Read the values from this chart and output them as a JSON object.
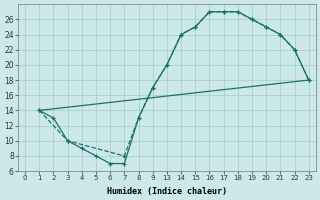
{
  "xlabel": "Humidex (Indice chaleur)",
  "ylabel": "",
  "bg_color": "#cce8e8",
  "grid_color": "#aacece",
  "line_color": "#1a7070",
  "xlim": [
    -0.5,
    23.5
  ],
  "ylim": [
    6,
    28
  ],
  "yticks": [
    6,
    8,
    10,
    12,
    14,
    16,
    18,
    20,
    22,
    24,
    26
  ],
  "xtick_positions": [
    0,
    1,
    2,
    3,
    4,
    5,
    6,
    7,
    8,
    9,
    13,
    14,
    15,
    16,
    17,
    18,
    19,
    20,
    21,
    22,
    23
  ],
  "xtick_labels": [
    "0",
    "1",
    "2",
    "3",
    "4",
    "5",
    "6",
    "7",
    "8",
    "9",
    "13",
    "14",
    "15",
    "16",
    "17",
    "18",
    "19",
    "20",
    "21",
    "22",
    "23"
  ],
  "line1_x": [
    1,
    2,
    3,
    4,
    5,
    6,
    7,
    8,
    9,
    13,
    14,
    15,
    16,
    17,
    18,
    19,
    20,
    21,
    22,
    23
  ],
  "line1_y": [
    14,
    13,
    10,
    9,
    8,
    7,
    7,
    13,
    17,
    20,
    24,
    25,
    27,
    27,
    27,
    26,
    25,
    24,
    22,
    18
  ],
  "line2_x": [
    1,
    3,
    7,
    8,
    9,
    13,
    14,
    15,
    16,
    17,
    18,
    19,
    20,
    21,
    22,
    23
  ],
  "line2_y": [
    14,
    10,
    8,
    13,
    17,
    20,
    24,
    25,
    27,
    27,
    27,
    26,
    25,
    24,
    22,
    18
  ],
  "line3_x": [
    1,
    23
  ],
  "line3_y": [
    14,
    18
  ]
}
